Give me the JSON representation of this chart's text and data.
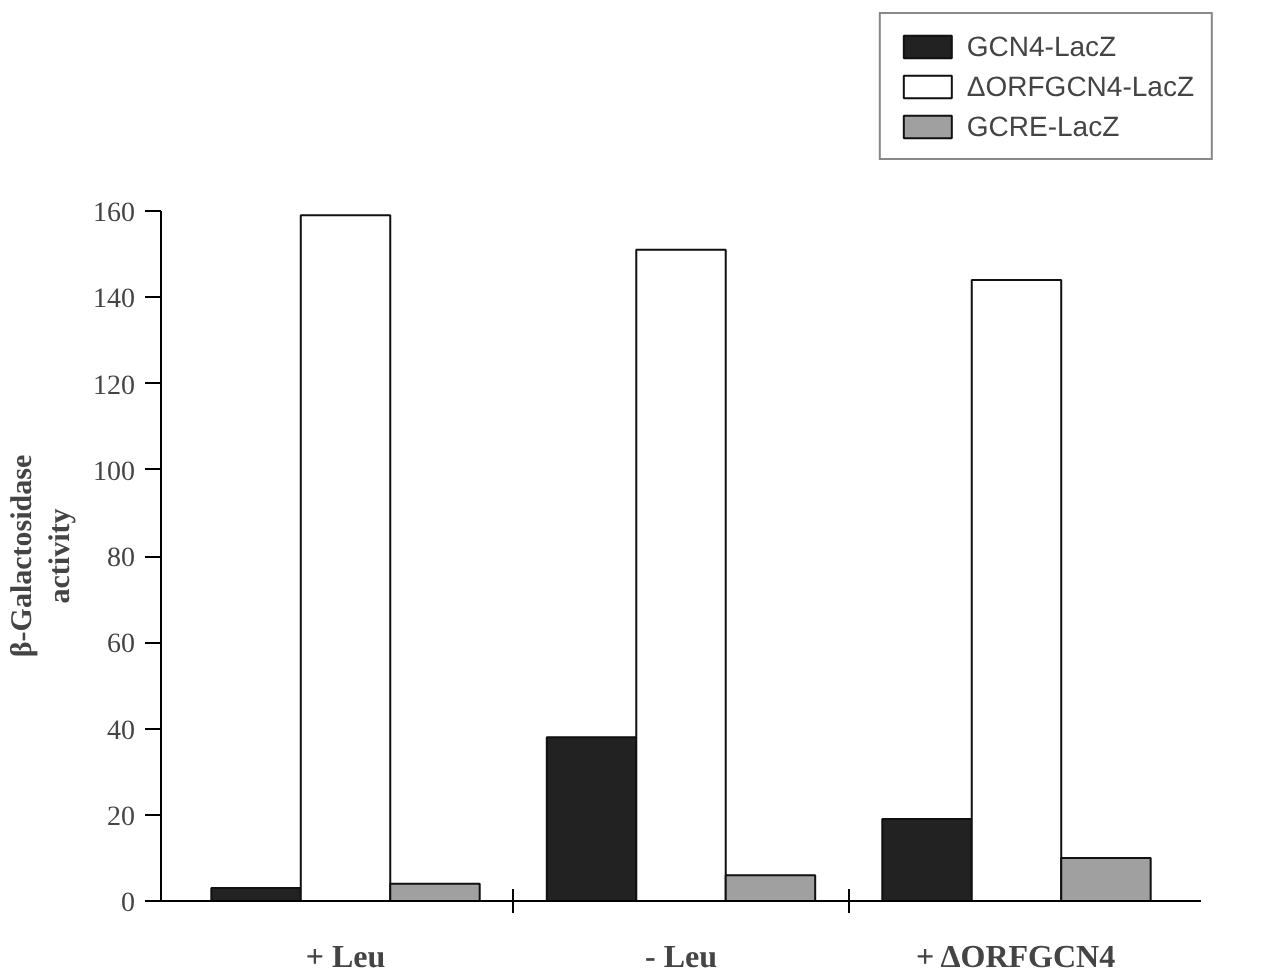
{
  "chart_data": {
    "type": "bar",
    "ylabel": "β-Galactosidase\nactivity",
    "categories": [
      "+ Leu",
      "- Leu",
      "+ ΔORFGCN4"
    ],
    "series": [
      {
        "name": "GCN4-LacZ",
        "color": "#222222",
        "values": [
          3,
          38,
          19
        ]
      },
      {
        "name": "ΔORFGCN4-LacZ",
        "color": "#ffffff",
        "values": [
          159,
          151,
          144
        ]
      },
      {
        "name": "GCRE-LacZ",
        "color": "#a0a0a0",
        "values": [
          4,
          6,
          10
        ]
      }
    ],
    "ylim": [
      0,
      160
    ],
    "yticks": [
      0,
      20,
      40,
      60,
      80,
      100,
      120,
      140,
      160
    ],
    "grid": false,
    "legend": "top right"
  }
}
